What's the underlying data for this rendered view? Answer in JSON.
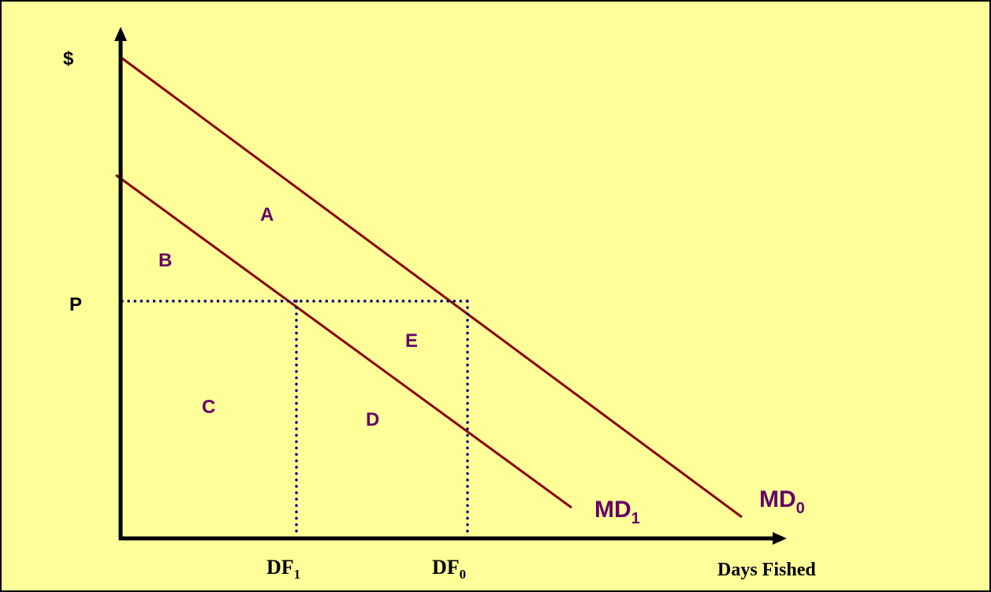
{
  "colors": {
    "background": "#ffff99",
    "axis": "#000000",
    "demand_line": "#8b0000",
    "dotted": "#000080",
    "region_label": "#660066",
    "curve_label": "#660066"
  },
  "axes": {
    "y_label": "$",
    "x_label": "Days Fished",
    "price_label": "P"
  },
  "ticks": {
    "df1": {
      "base": "DF",
      "sub": "1"
    },
    "df0": {
      "base": "DF",
      "sub": "0"
    }
  },
  "curves": {
    "md1": {
      "base": "MD",
      "sub": "1"
    },
    "md0": {
      "base": "MD",
      "sub": "0"
    }
  },
  "regions": {
    "a": "A",
    "b": "B",
    "c": "C",
    "d": "D",
    "e": "E"
  }
}
